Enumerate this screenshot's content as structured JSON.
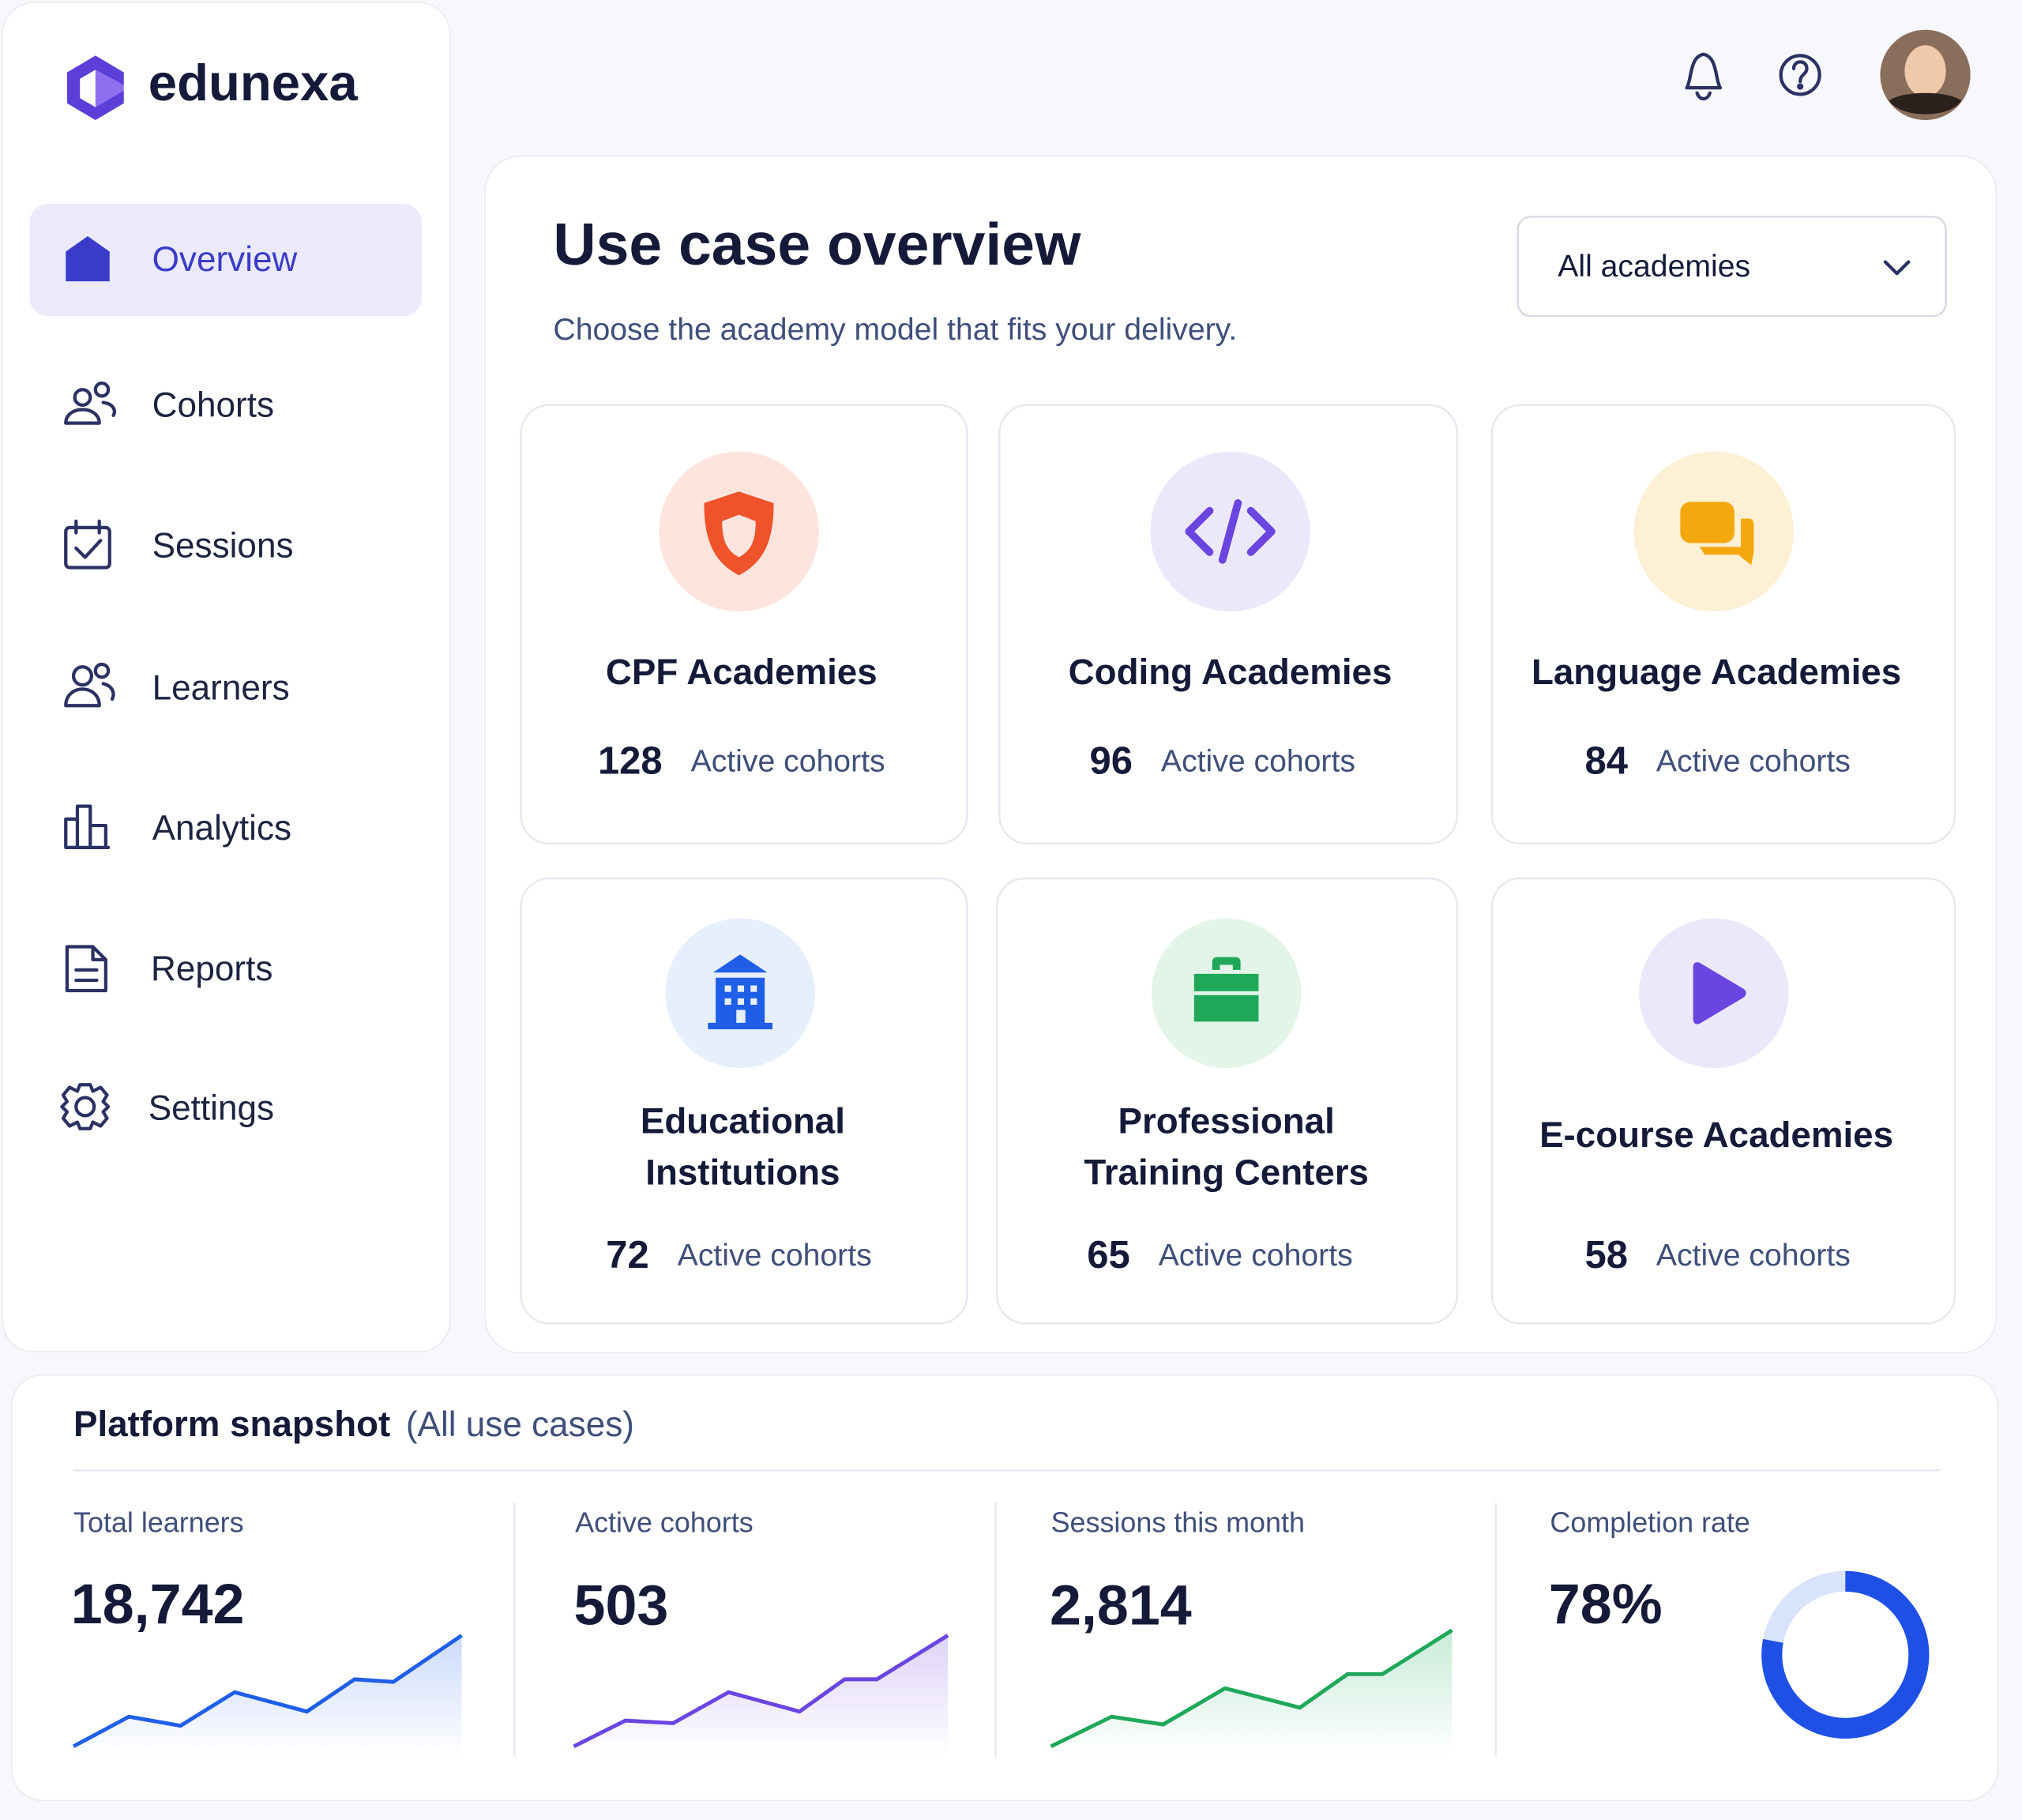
{
  "brand": "edunexa",
  "nav": [
    "Overview",
    "Cohorts",
    "Sessions",
    "Learners",
    "Analytics",
    "Reports",
    "Settings"
  ],
  "header": {
    "title": "Use case overview",
    "subtitle": "Choose the academy model that fits your delivery.",
    "filter": "All academies"
  },
  "cards": [
    {
      "title": [
        "CPF Academies"
      ],
      "count": 128,
      "count_label": "Active cohorts"
    },
    {
      "title": [
        "Coding Academies"
      ],
      "count": 96,
      "count_label": "Active cohorts"
    },
    {
      "title": [
        "Language Academies"
      ],
      "count": 84,
      "count_label": "Active cohorts"
    },
    {
      "title": [
        "Educational",
        "Institutions"
      ],
      "count": 72,
      "count_label": "Active cohorts"
    },
    {
      "title": [
        "Professional",
        "Training Centers"
      ],
      "count": 65,
      "count_label": "Active cohorts"
    },
    {
      "title": [
        "E-course Academies"
      ],
      "count": 58,
      "count_label": "Active cohorts"
    }
  ],
  "snapshot": {
    "title": "Platform snapshot",
    "scope": "(All use cases)",
    "metrics": [
      {
        "label": "Total learners",
        "value": "18,742"
      },
      {
        "label": "Active cohorts",
        "value": "503"
      },
      {
        "label": "Sessions this month",
        "value": "2,814"
      },
      {
        "label": "Completion rate",
        "value": "78%"
      }
    ]
  }
}
